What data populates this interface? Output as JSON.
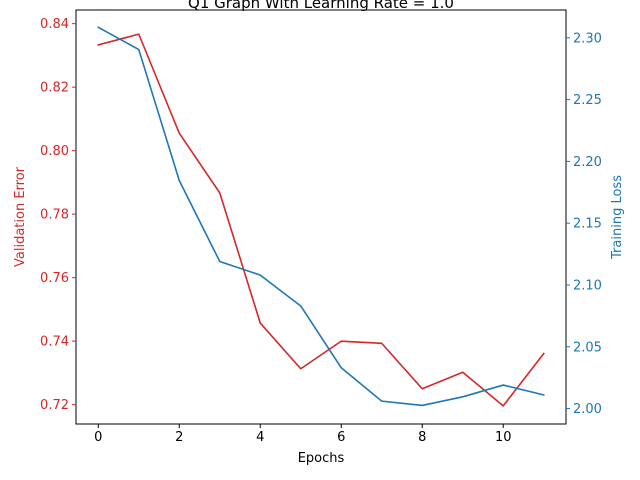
{
  "chart_data": {
    "type": "line",
    "title": "Q1 Graph With Learning Rate = 1.0",
    "xlabel": "Epochs",
    "x_ticks": [
      0,
      2,
      4,
      6,
      8,
      10
    ],
    "xlim": [
      -0.55,
      11.55
    ],
    "left_axis": {
      "label": "Validation Error",
      "color": "#d62728",
      "ylim": [
        0.7139,
        0.8443
      ],
      "ticks": [
        "0.72",
        "0.74",
        "0.76",
        "0.78",
        "0.80",
        "0.82",
        "0.84"
      ]
    },
    "right_axis": {
      "label": "Training Loss",
      "color": "#1f77b4",
      "ylim": [
        1.9875,
        2.3225
      ],
      "ticks": [
        "2.00",
        "2.05",
        "2.10",
        "2.15",
        "2.20",
        "2.25",
        "2.30"
      ]
    },
    "x": [
      0,
      1,
      2,
      3,
      4,
      5,
      6,
      7,
      8,
      9,
      10,
      11
    ],
    "series": [
      {
        "axis": "left",
        "color": "#d62728",
        "values": [
          0.8333,
          0.8367,
          0.8055,
          0.7867,
          0.7457,
          0.7313,
          0.74,
          0.7393,
          0.725,
          0.7302,
          0.7196,
          0.7361
        ]
      },
      {
        "axis": "right",
        "color": "#1f77b4",
        "values": [
          2.3085,
          2.2905,
          2.1845,
          2.119,
          2.108,
          2.083,
          2.033,
          2.006,
          2.0025,
          2.0095,
          2.019,
          2.011
        ]
      }
    ]
  }
}
